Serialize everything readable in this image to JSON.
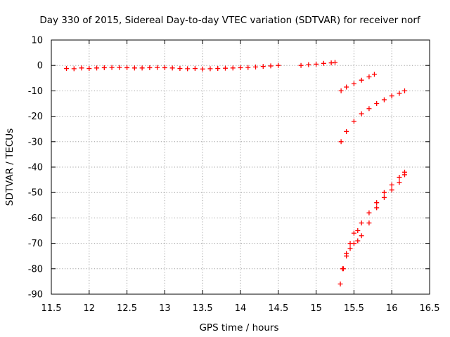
{
  "chart_data": {
    "type": "scatter",
    "title": "Day 330 of 2015, Sidereal Day-to-day VTEC variation (SDTVAR) for receiver norf",
    "xlabel": "GPS time / hours",
    "ylabel": "SDTVAR / TECUs",
    "xlim": [
      11.5,
      16.5
    ],
    "ylim": [
      -90,
      10
    ],
    "xticks": [
      "11.5",
      "12",
      "12.5",
      "13",
      "13.5",
      "14",
      "14.5",
      "15",
      "15.5",
      "16",
      "16.5"
    ],
    "yticks": [
      "10",
      "0",
      "-10",
      "-20",
      "-30",
      "-40",
      "-50",
      "-60",
      "-70",
      "-80",
      "-90"
    ],
    "grid": true,
    "legend": "none",
    "marker": "plus",
    "color": "#ff0000",
    "series": [
      {
        "x": [
          11.7,
          11.8,
          11.9,
          12.0,
          12.1,
          12.2,
          12.3,
          12.4,
          12.5,
          12.6,
          12.7,
          12.8,
          12.9,
          13.0,
          13.1,
          13.2,
          13.3,
          13.4,
          13.5,
          13.6,
          13.7,
          13.8,
          13.9,
          14.0,
          14.1,
          14.2,
          14.3,
          14.4,
          14.5
        ],
        "y": [
          -1.2,
          -1.3,
          -1.0,
          -1.2,
          -1.0,
          -0.9,
          -0.8,
          -0.8,
          -0.9,
          -1.0,
          -1.0,
          -0.9,
          -0.8,
          -0.9,
          -1.0,
          -1.2,
          -1.3,
          -1.2,
          -1.4,
          -1.3,
          -1.2,
          -1.1,
          -1.0,
          -0.9,
          -0.8,
          -0.6,
          -0.4,
          -0.2,
          0.0
        ]
      },
      {
        "x": [
          14.8,
          14.9,
          15.0,
          15.1,
          15.2,
          15.25
        ],
        "y": [
          0.0,
          0.3,
          0.5,
          0.8,
          1.0,
          1.2
        ]
      },
      {
        "x": [
          15.33,
          15.4,
          15.5,
          15.6,
          15.7,
          15.77
        ],
        "y": [
          -10,
          -8.5,
          -7.2,
          -5.8,
          -4.5,
          -3.5
        ]
      },
      {
        "x": [
          15.33,
          15.4,
          15.5,
          15.6,
          15.7,
          15.8,
          15.9,
          16.0,
          16.1,
          16.17
        ],
        "y": [
          -30,
          -26,
          -22,
          -19,
          -17,
          -15,
          -13.5,
          -12,
          -11,
          -10
        ]
      },
      {
        "x": [
          15.32,
          15.35,
          15.4,
          15.45,
          15.5,
          15.55,
          15.6,
          15.7,
          15.8,
          15.9,
          16.0,
          16.1,
          16.17
        ],
        "y": [
          -86,
          -80,
          -74,
          -70,
          -66,
          -65,
          -62,
          -58,
          -54,
          -50,
          -47,
          -44,
          -42
        ]
      },
      {
        "x": [
          15.36,
          15.4,
          15.45,
          15.5,
          15.55,
          15.6,
          15.7,
          15.8,
          15.9,
          16.0,
          16.1,
          16.17
        ],
        "y": [
          -80,
          -75,
          -72,
          -70,
          -69,
          -67,
          -62,
          -56,
          -52,
          -49,
          -46,
          -43
        ]
      }
    ]
  }
}
